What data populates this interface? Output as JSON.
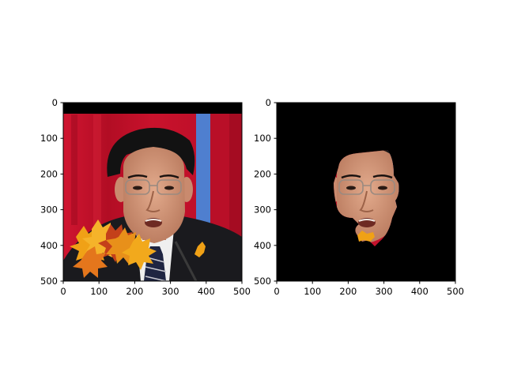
{
  "figure": {
    "background": "#ffffff",
    "panels": [
      {
        "id": "original",
        "content": "photo of a man in glasses, dark suit and tie, red backdrop with blue stripe, black band at top, autumn leaves overlay at lower left",
        "xticks": [
          "0",
          "100",
          "200",
          "300",
          "400",
          "500"
        ],
        "yticks": [
          "0",
          "100",
          "200",
          "300",
          "400",
          "500"
        ]
      },
      {
        "id": "masked",
        "content": "same photo masked to the face region on black background",
        "xticks": [
          "0",
          "100",
          "200",
          "300",
          "400",
          "500"
        ],
        "yticks": [
          "0",
          "100",
          "200",
          "300",
          "400",
          "500"
        ]
      }
    ]
  },
  "colors": {
    "backdrop_red": "#c7102b",
    "backdrop_blue": "#4f7fcf",
    "suit": "#1a1a1e",
    "hair": "#121212",
    "skin": "#d49a7e",
    "shirt": "#efefef",
    "leaf_orange": "#f0a116",
    "leaf_red": "#c4401a",
    "mask_black": "#000000"
  }
}
